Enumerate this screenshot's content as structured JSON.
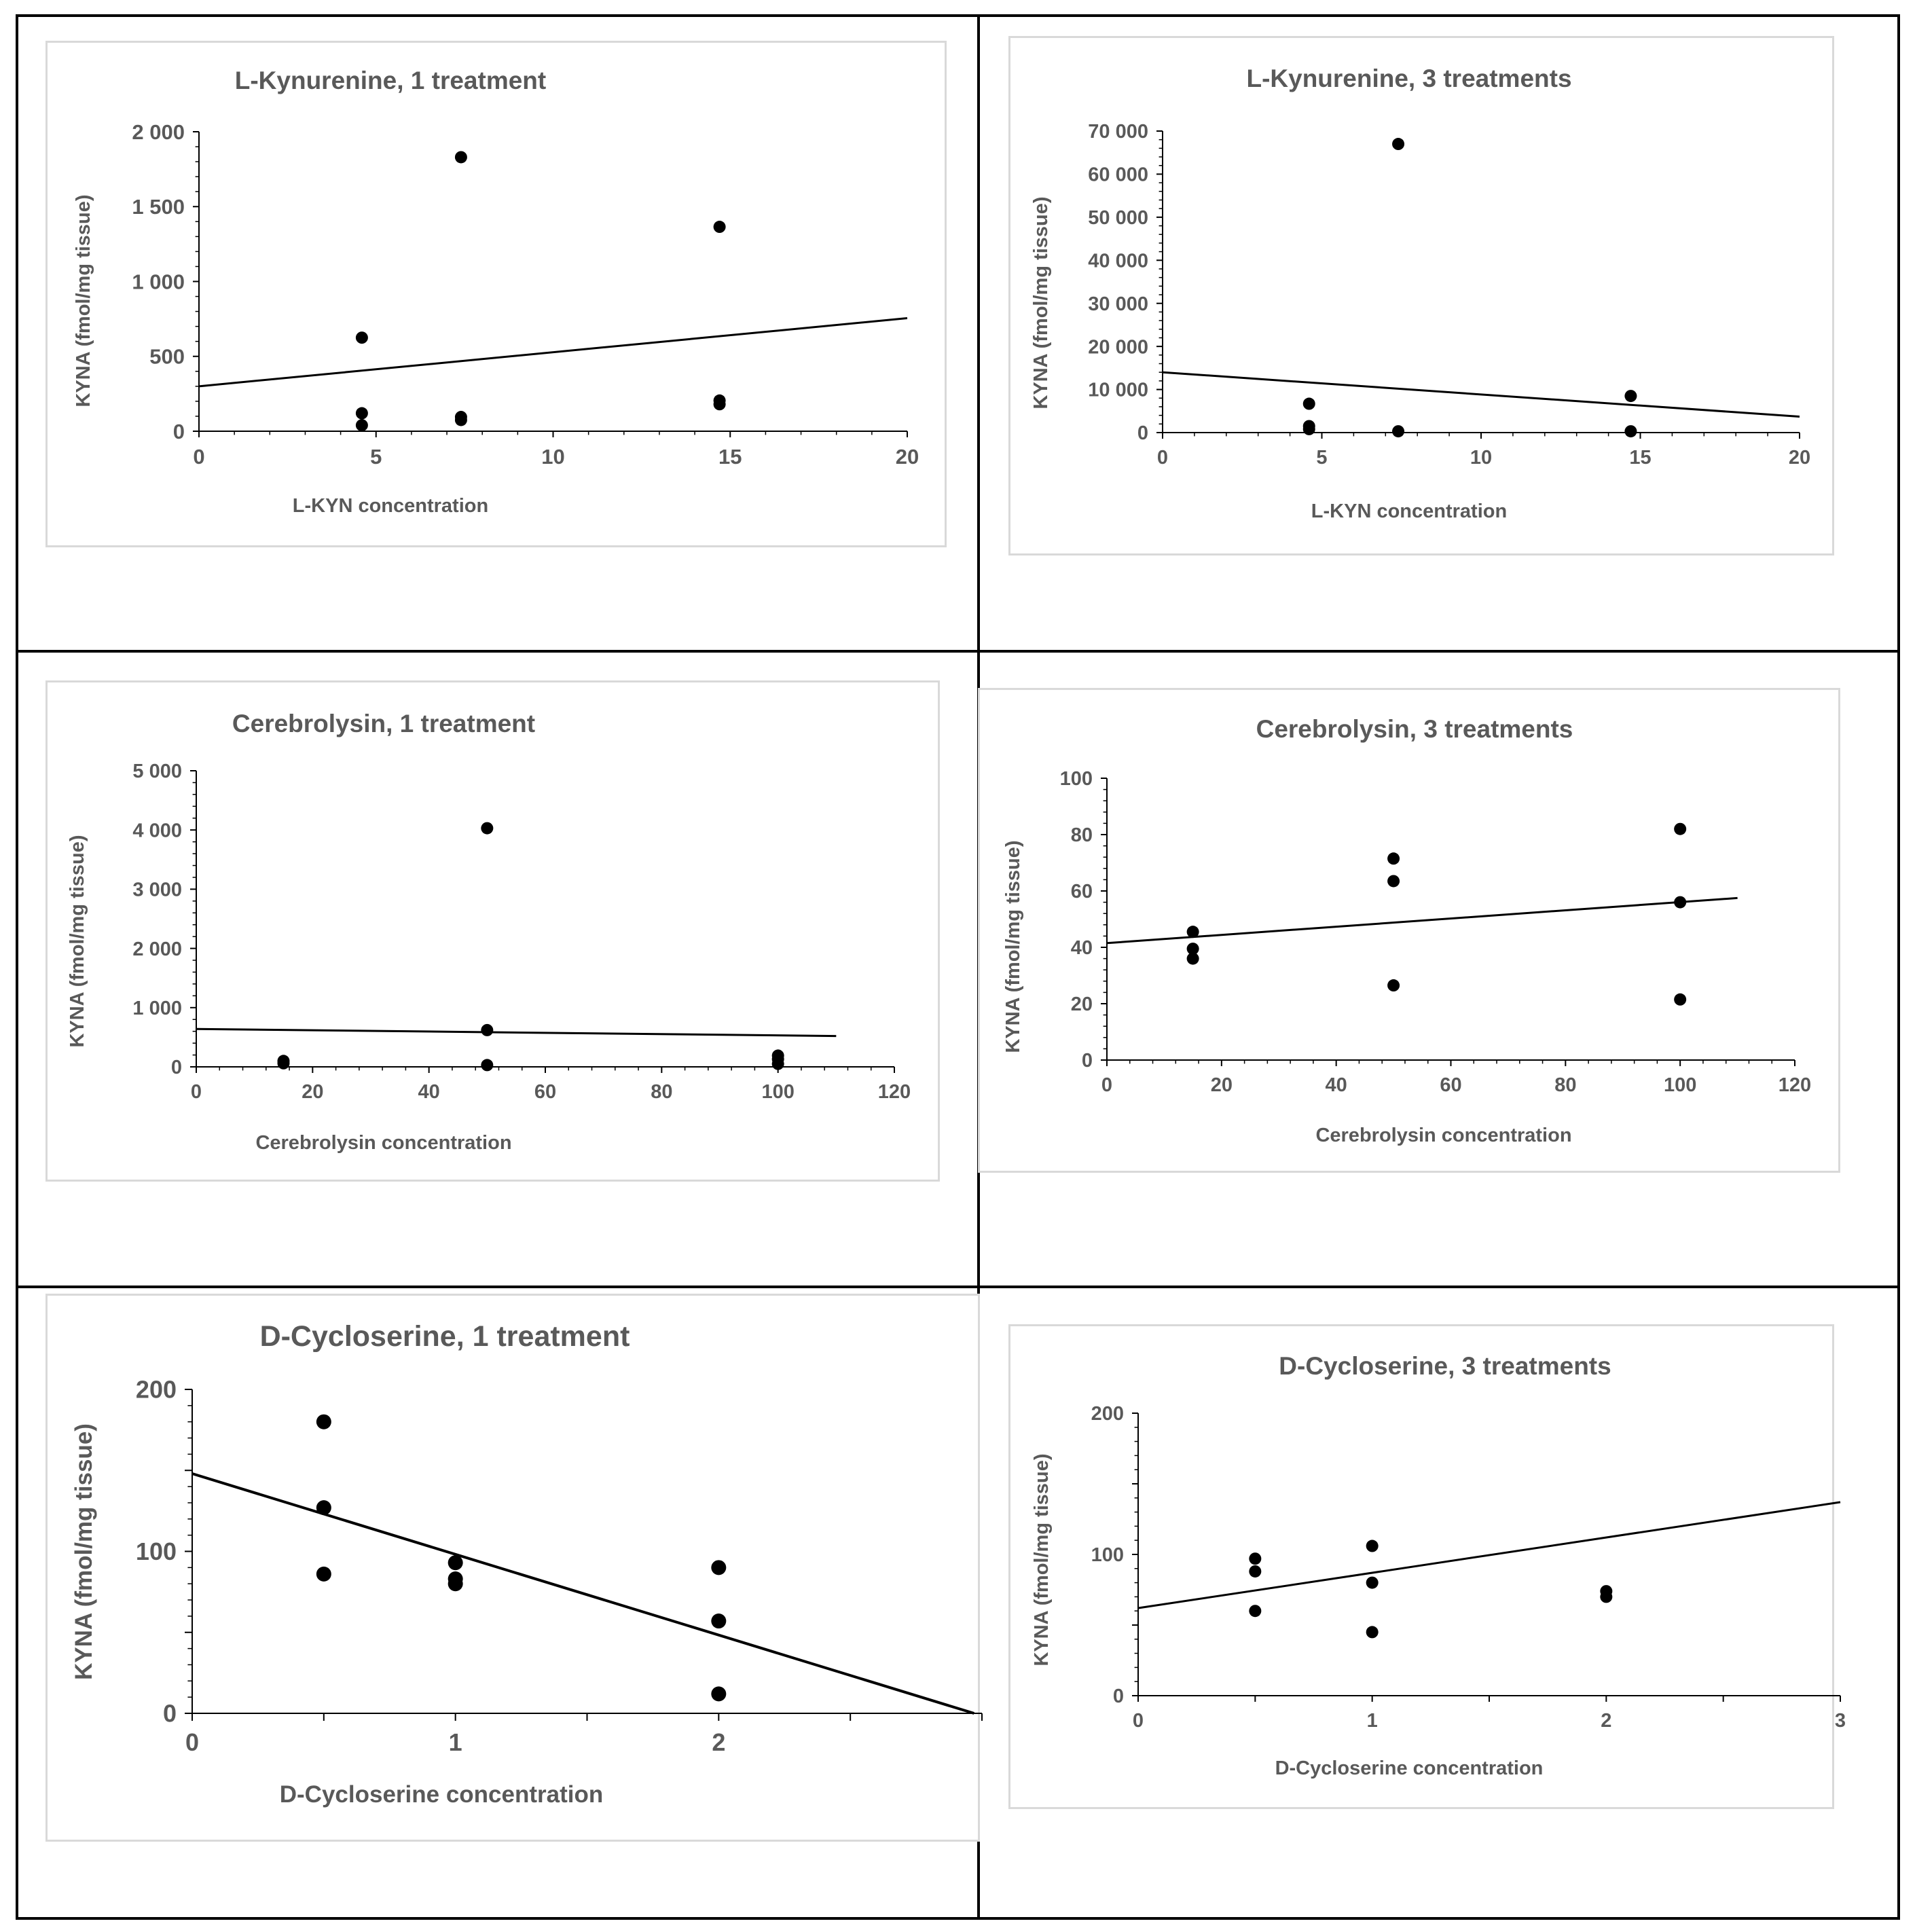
{
  "chart_data": [
    {
      "type": "scatter",
      "title": "L-Kynurenine, 1 treatment",
      "xlabel": "L-KYN concentration",
      "ylabel": "KYNA (fmol/mg tissue)",
      "xlim": [
        0,
        20
      ],
      "ylim": [
        0,
        2000
      ],
      "x_ticks": [
        0,
        5,
        10,
        15,
        20
      ],
      "y_ticks": [
        0,
        500,
        1000,
        1500,
        2000
      ],
      "x_tick_labels": [
        "0",
        "5",
        "10",
        "15",
        "20"
      ],
      "y_tick_labels": [
        "0",
        "500",
        "1 000",
        "1 500",
        "2 000"
      ],
      "points": [
        [
          4.6,
          625
        ],
        [
          4.6,
          120
        ],
        [
          4.6,
          40
        ],
        [
          7.4,
          1830
        ],
        [
          7.4,
          95
        ],
        [
          7.4,
          75
        ],
        [
          14.7,
          1365
        ],
        [
          14.7,
          205
        ],
        [
          14.7,
          180
        ]
      ],
      "trendline": [
        [
          0,
          300
        ],
        [
          20,
          755
        ]
      ],
      "legend": "none"
    },
    {
      "type": "scatter",
      "title": "L-Kynurenine, 3 treatments",
      "xlabel": "L-KYN concentration",
      "ylabel": "KYNA (fmol/mg tissue)",
      "xlim": [
        0,
        20
      ],
      "ylim": [
        0,
        70000
      ],
      "x_ticks": [
        0,
        5,
        10,
        15,
        20
      ],
      "y_ticks": [
        0,
        10000,
        20000,
        30000,
        40000,
        50000,
        60000,
        70000
      ],
      "x_tick_labels": [
        "0",
        "5",
        "10",
        "15",
        "20"
      ],
      "y_tick_labels": [
        "0",
        "10 000",
        "20 000",
        "30 000",
        "40 000",
        "50 000",
        "60 000",
        "70 000"
      ],
      "points": [
        [
          4.6,
          6700
        ],
        [
          4.6,
          1500
        ],
        [
          4.6,
          800
        ],
        [
          7.4,
          67000
        ],
        [
          7.4,
          300
        ],
        [
          14.7,
          8500
        ],
        [
          14.7,
          300
        ]
      ],
      "trendline": [
        [
          0,
          14000
        ],
        [
          20,
          3700
        ]
      ],
      "legend": "none"
    },
    {
      "type": "scatter",
      "title": "Cerebrolysin, 1 treatment",
      "xlabel": "Cerebrolysin concentration",
      "ylabel": "KYNA (fmol/mg tissue)",
      "xlim": [
        0,
        120
      ],
      "ylim": [
        0,
        5000
      ],
      "x_ticks": [
        0,
        20,
        40,
        60,
        80,
        100,
        120
      ],
      "y_ticks": [
        0,
        1000,
        2000,
        3000,
        4000,
        5000
      ],
      "x_tick_labels": [
        "0",
        "20",
        "40",
        "60",
        "80",
        "100",
        "120"
      ],
      "y_tick_labels": [
        "0",
        "1 000",
        "2 000",
        "3 000",
        "4 000",
        "5 000"
      ],
      "points": [
        [
          15,
          100
        ],
        [
          15,
          60
        ],
        [
          50,
          4030
        ],
        [
          50,
          620
        ],
        [
          50,
          30
        ],
        [
          100,
          190
        ],
        [
          100,
          130
        ],
        [
          100,
          50
        ]
      ],
      "trendline": [
        [
          0,
          640
        ],
        [
          110,
          520
        ]
      ],
      "legend": "none"
    },
    {
      "type": "scatter",
      "title": "Cerebrolysin, 3 treatments",
      "xlabel": "Cerebrolysin concentration",
      "ylabel": "KYNA (fmol/mg tissue)",
      "xlim": [
        0,
        120
      ],
      "ylim": [
        0,
        100
      ],
      "x_ticks": [
        0,
        20,
        40,
        60,
        80,
        100,
        120
      ],
      "y_ticks": [
        0,
        20,
        40,
        60,
        80,
        100
      ],
      "x_tick_labels": [
        "0",
        "20",
        "40",
        "60",
        "80",
        "100",
        "120"
      ],
      "y_tick_labels": [
        "0",
        "20",
        "40",
        "60",
        "80",
        "100"
      ],
      "points": [
        [
          15,
          45.5
        ],
        [
          15,
          39.5
        ],
        [
          15,
          36
        ],
        [
          50,
          71.5
        ],
        [
          50,
          63.5
        ],
        [
          50,
          26.5
        ],
        [
          100,
          82
        ],
        [
          100,
          56
        ],
        [
          100,
          21.5
        ]
      ],
      "trendline": [
        [
          0,
          41.5
        ],
        [
          110,
          57.5
        ]
      ],
      "legend": "none"
    },
    {
      "type": "scatter",
      "title": "D-Cycloserine, 1 treatment",
      "xlabel": "D-Cycloserine concentration",
      "ylabel": "KYNA (fmol/mg tissue)",
      "xlim": [
        0,
        3
      ],
      "ylim": [
        0,
        200
      ],
      "x_ticks": [
        0,
        0.5,
        1,
        1.5,
        2,
        2.5,
        3
      ],
      "y_ticks": [
        0,
        50,
        100,
        150,
        200
      ],
      "x_tick_labels": [
        "0",
        "",
        "1",
        "",
        "2",
        "",
        ""
      ],
      "y_tick_labels": [
        "0",
        "",
        "100",
        "",
        "200"
      ],
      "points": [
        [
          0.5,
          180
        ],
        [
          0.5,
          127
        ],
        [
          0.5,
          86
        ],
        [
          1,
          93
        ],
        [
          1,
          83
        ],
        [
          1,
          80
        ],
        [
          2,
          90
        ],
        [
          2,
          57
        ],
        [
          2,
          12
        ]
      ],
      "trendline": [
        [
          0,
          148
        ],
        [
          2.97,
          0
        ]
      ],
      "legend": "none"
    },
    {
      "type": "scatter",
      "title": "D-Cycloserine, 3 treatments",
      "xlabel": "D-Cycloserine concentration",
      "ylabel": "KYNA (fmol/mg tissue)",
      "xlim": [
        0,
        3
      ],
      "ylim": [
        0,
        200
      ],
      "x_ticks": [
        0,
        0.5,
        1,
        1.5,
        2,
        2.5,
        3
      ],
      "y_ticks": [
        0,
        50,
        100,
        150,
        200
      ],
      "x_tick_labels": [
        "0",
        "",
        "1",
        "",
        "2",
        "",
        "3"
      ],
      "y_tick_labels": [
        "0",
        "",
        "100",
        "",
        "200"
      ],
      "points": [
        [
          0.5,
          97
        ],
        [
          0.5,
          88
        ],
        [
          0.5,
          60
        ],
        [
          1,
          106
        ],
        [
          1,
          80
        ],
        [
          1,
          45
        ],
        [
          2,
          74
        ],
        [
          2,
          70
        ]
      ],
      "trendline": [
        [
          0,
          62
        ],
        [
          3,
          137
        ]
      ],
      "legend": "none"
    }
  ]
}
